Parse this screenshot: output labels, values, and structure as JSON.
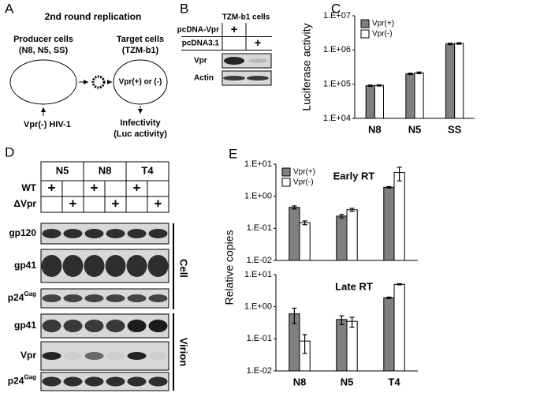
{
  "panels": {
    "A": {
      "letter": "A",
      "title": "2nd round replication",
      "producer": "Producer cells",
      "producer_sub": "(N8, N5, SS)",
      "target": "Target cells",
      "target_sub": "(TZM-b1)",
      "inside": "Vpr(+) or (-)",
      "input": "Vpr(-) HIV-1",
      "output": "Infectivity",
      "output_sub": "(Luc activity)"
    },
    "B": {
      "letter": "B",
      "header": "TZM-b1 cells",
      "rows": [
        {
          "label": "pcDNA-Vpr",
          "marks": [
            "+",
            null
          ]
        },
        {
          "label": "pcDNA3.1",
          "marks": [
            null,
            "+"
          ]
        }
      ],
      "blots": [
        "Vpr",
        "Actin"
      ]
    },
    "D": {
      "letter": "D",
      "groups": [
        "N5",
        "N8",
        "T4"
      ],
      "rows": [
        {
          "label": "WT",
          "marks": [
            "+",
            null,
            "+",
            null,
            "+",
            null
          ]
        },
        {
          "label": "ΔVpr",
          "marks": [
            null,
            "+",
            null,
            "+",
            null,
            "+"
          ]
        }
      ],
      "cell_label": "Cell",
      "virion_label": "Virion",
      "cell_blots": [
        {
          "text": "gp120"
        },
        {
          "text": "gp41"
        },
        {
          "text": "p24",
          "sup": "Gag"
        }
      ],
      "virion_blots": [
        {
          "text": "gp41"
        },
        {
          "text": "Vpr"
        },
        {
          "text": "p24",
          "sup": "Gag"
        }
      ]
    }
  },
  "chart_data": [
    {
      "type": "bar",
      "panel": "C",
      "ylabel": "Luciferase activity",
      "log_y": true,
      "legend": "upper left",
      "categories": [
        "N8",
        "N5",
        "SS"
      ],
      "ylim": [
        10000,
        10000000
      ],
      "yticks": [
        {
          "value": 10000,
          "label": "1.E+04"
        },
        {
          "value": 100000,
          "label": "1.E+05"
        },
        {
          "value": 1000000,
          "label": "1.E+06"
        },
        {
          "value": 10000000,
          "label": "1.E+07"
        }
      ],
      "series": [
        {
          "name": "Vpr(+)",
          "color": "#808080",
          "values": [
            90000,
            200000,
            1500000
          ],
          "errors": [
            4000,
            10000,
            80000
          ]
        },
        {
          "name": "Vpr(-)",
          "color": "#ffffff",
          "values": [
            92000,
            215000,
            1550000
          ],
          "errors": [
            4000,
            12000,
            80000
          ]
        }
      ]
    },
    {
      "type": "bar",
      "panel": "E",
      "ylabel": "Relative copies",
      "annotation": "Early RT",
      "log_y": true,
      "legend": "upper left",
      "ylim": [
        0.01,
        10
      ],
      "yticks": [
        {
          "value": 0.01,
          "label": "1.E-02"
        },
        {
          "value": 0.1,
          "label": "1.E-01"
        },
        {
          "value": 1,
          "label": "1.E+00"
        },
        {
          "value": 10,
          "label": "1.E+01"
        }
      ],
      "series": [
        {
          "name": "Vpr(+)",
          "color": "#808080",
          "values": [
            0.45,
            0.24,
            1.9
          ],
          "errors": [
            0.05,
            0.03,
            0.1
          ]
        },
        {
          "name": "Vpr(-)",
          "color": "#ffffff",
          "values": [
            0.15,
            0.38,
            5.5
          ],
          "errors": [
            0.02,
            0.04,
            2.5
          ]
        }
      ]
    },
    {
      "type": "bar",
      "annotation": "Late RT",
      "log_y": true,
      "categories": [
        "N8",
        "N5",
        "T4"
      ],
      "ylim": [
        0.01,
        10
      ],
      "yticks": [
        {
          "value": 0.01,
          "label": "1.E-02"
        },
        {
          "value": 0.1,
          "label": "1.E-01"
        },
        {
          "value": 1,
          "label": "1.E+00"
        },
        {
          "value": 10,
          "label": "1.E+01"
        }
      ],
      "series": [
        {
          "color": "#808080",
          "values": [
            0.6,
            0.4,
            1.9
          ],
          "errors": [
            0.3,
            0.12,
            0.1
          ]
        },
        {
          "color": "#ffffff",
          "values": [
            0.085,
            0.35,
            5.0
          ],
          "errors": [
            0.05,
            0.12,
            0.2
          ]
        }
      ]
    }
  ]
}
